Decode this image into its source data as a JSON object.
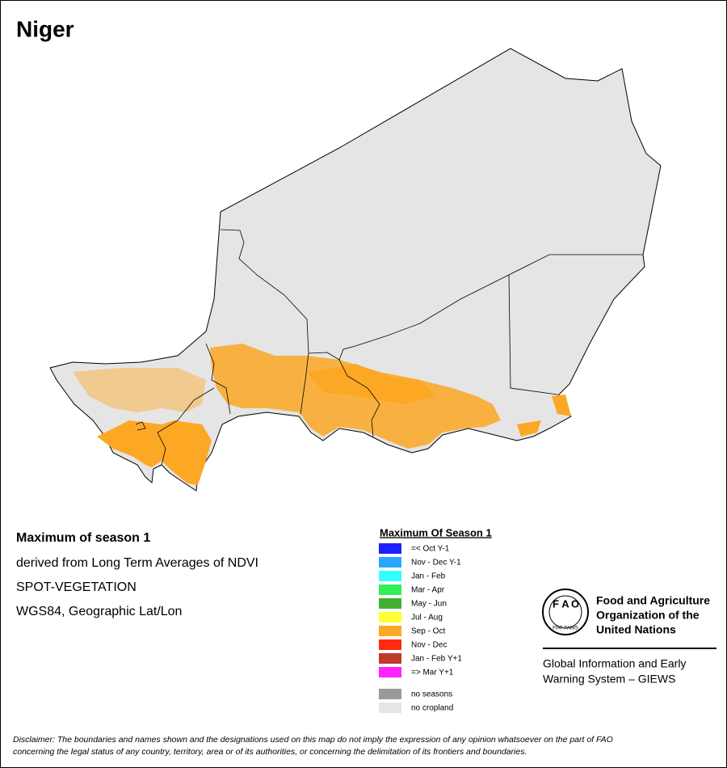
{
  "title": "Niger",
  "info": {
    "heading": "Maximum of season 1",
    "lines": [
      "derived from Long Term Averages of NDVI",
      "SPOT-VEGETATION",
      "WGS84, Geographic Lat/Lon"
    ]
  },
  "legend": {
    "title": "Maximum Of Season 1",
    "items": [
      {
        "label": "=< Oct Y-1",
        "color": "#2020ff"
      },
      {
        "label": "Nov - Dec Y-1",
        "color": "#2aa6ff"
      },
      {
        "label": "Jan - Feb",
        "color": "#33ffff"
      },
      {
        "label": "Mar - Apr",
        "color": "#33ee55"
      },
      {
        "label": "May - Jun",
        "color": "#44b030"
      },
      {
        "label": "Jul - Aug",
        "color": "#ffff33"
      },
      {
        "label": "Sep - Oct",
        "color": "#fca824"
      },
      {
        "label": "Nov - Dec",
        "color": "#ff2a10"
      },
      {
        "label": "Jan - Feb Y+1",
        "color": "#c0392b"
      },
      {
        "label": "=> Mar Y+1",
        "color": "#ff22ff"
      }
    ],
    "extra": [
      {
        "label": "no seasons",
        "color": "#999999"
      },
      {
        "label": "no cropland",
        "color": "#e5e5e5"
      }
    ]
  },
  "logo": {
    "emblem": [
      "F",
      "A",
      "O"
    ],
    "motto": "FIAT PANIS",
    "org_lines": [
      "Food and Agriculture",
      "Organization of the",
      "United Nations"
    ],
    "giews_lines": [
      "Global Information and Early",
      "Warning System – GIEWS"
    ]
  },
  "disclaimer": [
    "Disclaimer: The boundaries and names shown and the designations used on this map do not imply the expression of any opinion whatsoever on the part of FAO",
    "concerning the legal status of any country, territory, area or of its authorities, or concerning the delimitation of its frontiers and boundaries."
  ]
}
